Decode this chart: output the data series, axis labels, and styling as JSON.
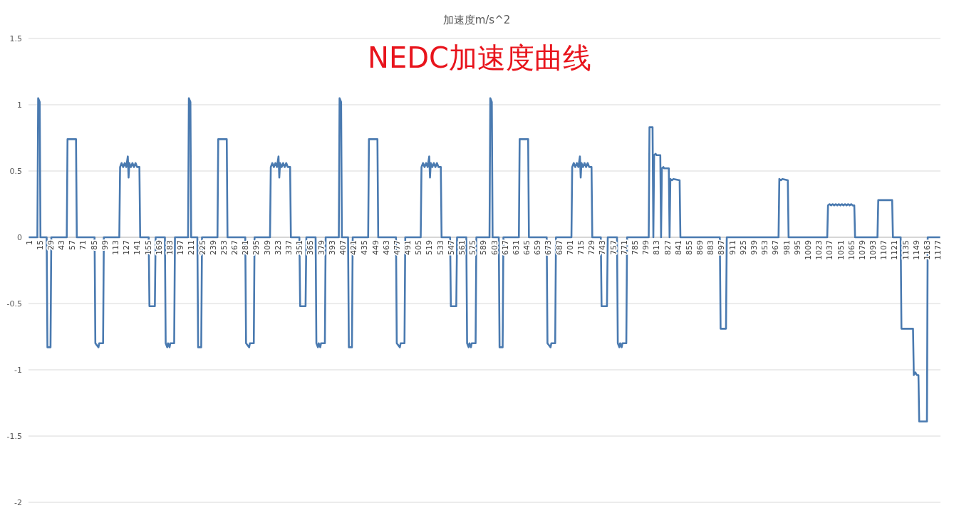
{
  "chart_data": {
    "type": "line",
    "title": "加速度m/s^2",
    "subtitle": "NEDC加速度曲线",
    "xlim": [
      0.5,
      1180.5
    ],
    "xticks": [
      1,
      15,
      29,
      43,
      57,
      71,
      85,
      99,
      113,
      127,
      141,
      155,
      169,
      183,
      197,
      211,
      225,
      239,
      253,
      267,
      281,
      295,
      309,
      323,
      337,
      351,
      365,
      379,
      393,
      407,
      421,
      435,
      449,
      463,
      477,
      491,
      505,
      519,
      533,
      547,
      561,
      575,
      589,
      603,
      617,
      631,
      645,
      659,
      673,
      687,
      701,
      715,
      729,
      743,
      757,
      771,
      785,
      799,
      813,
      827,
      841,
      855,
      869,
      883,
      897,
      911,
      925,
      939,
      953,
      967,
      981,
      995,
      1009,
      1023,
      1037,
      1051,
      1065,
      1079,
      1093,
      1107,
      1121,
      1135,
      1149,
      1163,
      1177
    ],
    "ylim": [
      -2,
      1.5
    ],
    "yticks": [
      -2,
      -1.5,
      -1,
      -0.5,
      0,
      0.5,
      1,
      1.5
    ],
    "grid": "y",
    "series": [
      {
        "color": "#4a7ab0",
        "x": [
          1,
          12,
          13,
          15,
          16,
          24,
          25,
          29,
          30,
          50,
          51,
          62,
          63,
          86,
          87,
          91,
          92,
          97,
          98,
          118,
          119,
          121,
          123,
          125,
          127,
          129,
          130,
          131,
          133,
          135,
          137,
          139,
          141,
          144,
          145,
          156,
          157,
          164,
          165,
          177,
          178,
          180,
          181,
          183,
          184,
          189,
          190,
          207,
          208,
          210,
          211,
          219,
          220,
          224,
          225,
          245,
          246,
          257,
          258,
          281,
          282,
          286,
          287,
          292,
          293,
          313,
          314,
          316,
          318,
          320,
          322,
          324,
          325,
          326,
          328,
          330,
          332,
          334,
          336,
          339,
          340,
          351,
          352,
          359,
          360,
          372,
          373,
          375,
          376,
          378,
          379,
          384,
          385,
          402,
          403,
          405,
          406,
          414,
          415,
          419,
          420,
          440,
          441,
          452,
          453,
          476,
          477,
          481,
          482,
          487,
          488,
          508,
          509,
          511,
          513,
          515,
          517,
          519,
          520,
          521,
          523,
          525,
          527,
          529,
          531,
          534,
          535,
          546,
          547,
          554,
          555,
          567,
          568,
          570,
          571,
          573,
          574,
          579,
          580,
          597,
          598,
          600,
          601,
          609,
          610,
          614,
          615,
          635,
          636,
          647,
          648,
          671,
          672,
          676,
          677,
          682,
          683,
          703,
          704,
          706,
          708,
          710,
          712,
          714,
          715,
          716,
          718,
          720,
          722,
          724,
          726,
          729,
          730,
          741,
          742,
          749,
          750,
          762,
          763,
          765,
          766,
          768,
          769,
          774,
          775,
          803,
          804,
          808,
          809,
          810,
          812,
          813,
          818,
          819,
          820,
          822,
          823,
          829,
          830,
          831,
          833,
          835,
          843,
          844,
          895,
          896,
          903,
          904,
          971,
          972,
          974,
          976,
          983,
          984,
          1034,
          1035,
          1037,
          1039,
          1041,
          1043,
          1045,
          1047,
          1049,
          1051,
          1053,
          1055,
          1057,
          1059,
          1061,
          1063,
          1065,
          1067,
          1069,
          1070,
          1099,
          1100,
          1118,
          1119,
          1129,
          1130,
          1145,
          1146,
          1148,
          1150,
          1152,
          1153,
          1163,
          1164,
          1180
        ],
        "values": [
          0,
          0,
          1.05,
          1.02,
          0,
          0,
          -0.83,
          -0.83,
          0,
          0,
          0.74,
          0.74,
          0,
          0,
          -0.8,
          -0.83,
          -0.8,
          -0.8,
          0,
          0,
          0.53,
          0.56,
          0.53,
          0.56,
          0.53,
          0.61,
          0.45,
          0.56,
          0.53,
          0.56,
          0.53,
          0.56,
          0.53,
          0.53,
          0,
          0,
          -0.52,
          -0.52,
          0,
          0,
          -0.8,
          -0.83,
          -0.8,
          -0.83,
          -0.8,
          -0.8,
          0,
          0,
          1.05,
          1.02,
          0,
          0,
          -0.83,
          -0.83,
          0,
          0,
          0.74,
          0.74,
          0,
          0,
          -0.8,
          -0.83,
          -0.8,
          -0.8,
          0,
          0,
          0.53,
          0.56,
          0.53,
          0.56,
          0.53,
          0.61,
          0.45,
          0.56,
          0.53,
          0.56,
          0.53,
          0.56,
          0.53,
          0.53,
          0,
          0,
          -0.52,
          -0.52,
          0,
          0,
          -0.8,
          -0.83,
          -0.8,
          -0.83,
          -0.8,
          -0.8,
          0,
          0,
          1.05,
          1.02,
          0,
          0,
          -0.83,
          -0.83,
          0,
          0,
          0.74,
          0.74,
          0,
          0,
          -0.8,
          -0.83,
          -0.8,
          -0.8,
          0,
          0,
          0.53,
          0.56,
          0.53,
          0.56,
          0.53,
          0.61,
          0.45,
          0.56,
          0.53,
          0.56,
          0.53,
          0.56,
          0.53,
          0.53,
          0,
          0,
          -0.52,
          -0.52,
          0,
          0,
          -0.8,
          -0.83,
          -0.8,
          -0.83,
          -0.8,
          -0.8,
          0,
          0,
          1.05,
          1.02,
          0,
          0,
          -0.83,
          -0.83,
          0,
          0,
          0.74,
          0.74,
          0,
          0,
          -0.8,
          -0.83,
          -0.8,
          -0.8,
          0,
          0,
          0.53,
          0.56,
          0.53,
          0.56,
          0.53,
          0.61,
          0.45,
          0.56,
          0.53,
          0.56,
          0.53,
          0.56,
          0.53,
          0.53,
          0,
          0,
          -0.52,
          -0.52,
          0,
          0,
          -0.8,
          -0.83,
          -0.8,
          -0.83,
          -0.8,
          -0.8,
          0,
          0,
          0.83,
          0.83,
          0,
          0.62,
          0.63,
          0.62,
          0.62,
          0,
          0.52,
          0.53,
          0.52,
          0.52,
          0,
          0.44,
          0.43,
          0.44,
          0.43,
          0,
          0,
          -0.69,
          -0.69,
          0,
          0,
          0.44,
          0.43,
          0.44,
          0.43,
          0,
          0,
          0.24,
          0.25,
          0.24,
          0.25,
          0.24,
          0.25,
          0.24,
          0.25,
          0.24,
          0.25,
          0.24,
          0.25,
          0.24,
          0.25,
          0.24,
          0.25,
          0.24,
          0.24,
          0,
          0,
          0.28,
          0.28,
          0,
          0,
          -0.69,
          -0.69,
          -1.04,
          -1.02,
          -1.04,
          -1.04,
          -1.39,
          -1.39,
          0,
          0
        ]
      }
    ]
  }
}
